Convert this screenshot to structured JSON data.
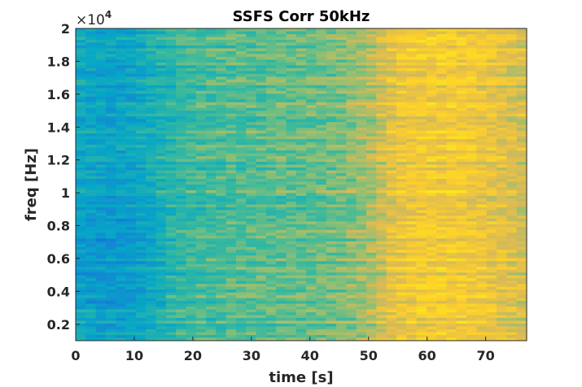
{
  "chart_data": {
    "type": "heatmap",
    "title": "SSFS Corr 50kHz",
    "xlabel": "time [s]",
    "ylabel": "freq [Hz]",
    "xlim": [
      0,
      77
    ],
    "ylim": [
      1000,
      20000
    ],
    "y_exponent_label": "×10",
    "y_exponent_power": "4",
    "xticks": [
      0,
      10,
      20,
      30,
      40,
      50,
      60,
      70
    ],
    "xtick_labels": [
      "0",
      "10",
      "20",
      "30",
      "40",
      "50",
      "60",
      "70"
    ],
    "yticks": [
      2000,
      4000,
      6000,
      8000,
      10000,
      12000,
      14000,
      16000,
      18000,
      20000
    ],
    "ytick_labels": [
      "0.2",
      "0.4",
      "0.6",
      "0.8",
      "1",
      "1.2",
      "1.4",
      "1.6",
      "1.8",
      "2"
    ],
    "colormap": "parula",
    "colorbar": false,
    "normalized_trend_over_time": {
      "time": [
        0,
        5,
        10,
        15,
        20,
        30,
        40,
        45,
        50,
        55,
        60,
        65,
        70,
        77
      ],
      "value": [
        0.44,
        0.4,
        0.42,
        0.5,
        0.55,
        0.58,
        0.6,
        0.62,
        0.68,
        0.8,
        0.83,
        0.83,
        0.8,
        0.74
      ]
    }
  }
}
